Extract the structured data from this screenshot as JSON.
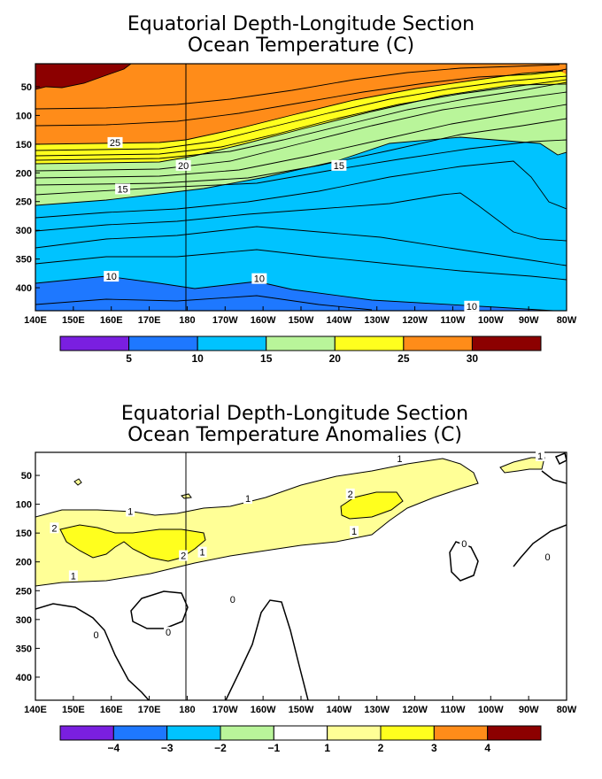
{
  "chart_data": [
    {
      "type": "heatmap",
      "title": "Equatorial Depth-Longitude Section",
      "subtitle": "Ocean Temperature (C)",
      "x_ticks": [
        "140E",
        "150E",
        "160E",
        "170E",
        "180",
        "170W",
        "160W",
        "150W",
        "140W",
        "130W",
        "120W",
        "110W",
        "100W",
        "90W",
        "80W"
      ],
      "y_ticks": [
        "50",
        "100",
        "150",
        "200",
        "250",
        "300",
        "350",
        "400"
      ],
      "ylim": [
        440,
        10
      ],
      "contour_levels": [
        5,
        10,
        15,
        20,
        25,
        30
      ],
      "colorbar_labels": [
        "5",
        "10",
        "15",
        "20",
        "25",
        "30"
      ],
      "colorbar_colors": [
        "#7a1fe0",
        "#1e78ff",
        "#00c3ff",
        "#b9f59a",
        "#ffff1e",
        "#ff8c19",
        "#8c0000"
      ],
      "contour_labels": [
        {
          "text": "25",
          "lon": 161,
          "depth": 147
        },
        {
          "text": "20",
          "lon": 179,
          "depth": 187
        },
        {
          "text": "15",
          "lon": 220,
          "depth": 187
        },
        {
          "text": "15",
          "lon": 163,
          "depth": 228
        },
        {
          "text": "10",
          "lon": 160,
          "depth": 380
        },
        {
          "text": "10",
          "lon": 199,
          "depth": 384
        },
        {
          "text": "10",
          "lon": 255,
          "depth": 432
        }
      ]
    },
    {
      "type": "heatmap",
      "title": "Equatorial Depth-Longitude Section",
      "subtitle": "Ocean Temperature Anomalies (C)",
      "x_ticks": [
        "140E",
        "150E",
        "160E",
        "170E",
        "180",
        "170W",
        "160W",
        "150W",
        "140W",
        "130W",
        "120W",
        "110W",
        "100W",
        "90W",
        "80W"
      ],
      "y_ticks": [
        "50",
        "100",
        "150",
        "200",
        "250",
        "300",
        "350",
        "400"
      ],
      "ylim": [
        440,
        10
      ],
      "contour_levels": [
        -4,
        -3,
        -2,
        -1,
        1,
        2,
        3,
        4
      ],
      "colorbar_labels": [
        "-4",
        "-3",
        "-2",
        "-1",
        "1",
        "2",
        "3",
        "4"
      ],
      "colorbar_colors": [
        "#7a1fe0",
        "#1e78ff",
        "#00c3ff",
        "#b9f59a",
        "#ffffff",
        "#ffff96",
        "#ffff1e",
        "#ff8c19",
        "#8c0000"
      ],
      "contour_labels": [
        {
          "text": "1",
          "lon": 236,
          "depth": 21
        },
        {
          "text": "1",
          "lon": 273,
          "depth": 16
        },
        {
          "text": "2",
          "lon": 223,
          "depth": 82
        },
        {
          "text": "1",
          "lon": 196,
          "depth": 90
        },
        {
          "text": "1",
          "lon": 165,
          "depth": 112
        },
        {
          "text": "2",
          "lon": 145,
          "depth": 141
        },
        {
          "text": "1",
          "lon": 224,
          "depth": 147
        },
        {
          "text": "1",
          "lon": 184,
          "depth": 183
        },
        {
          "text": "2",
          "lon": 179,
          "depth": 189
        },
        {
          "text": "1",
          "lon": 150,
          "depth": 224
        },
        {
          "text": "0",
          "lon": 253,
          "depth": 168
        },
        {
          "text": "0",
          "lon": 275,
          "depth": 191
        },
        {
          "text": "0",
          "lon": 192,
          "depth": 265
        },
        {
          "text": "0",
          "lon": 175,
          "depth": 322
        },
        {
          "text": "0",
          "lon": 156,
          "depth": 326
        }
      ]
    }
  ]
}
